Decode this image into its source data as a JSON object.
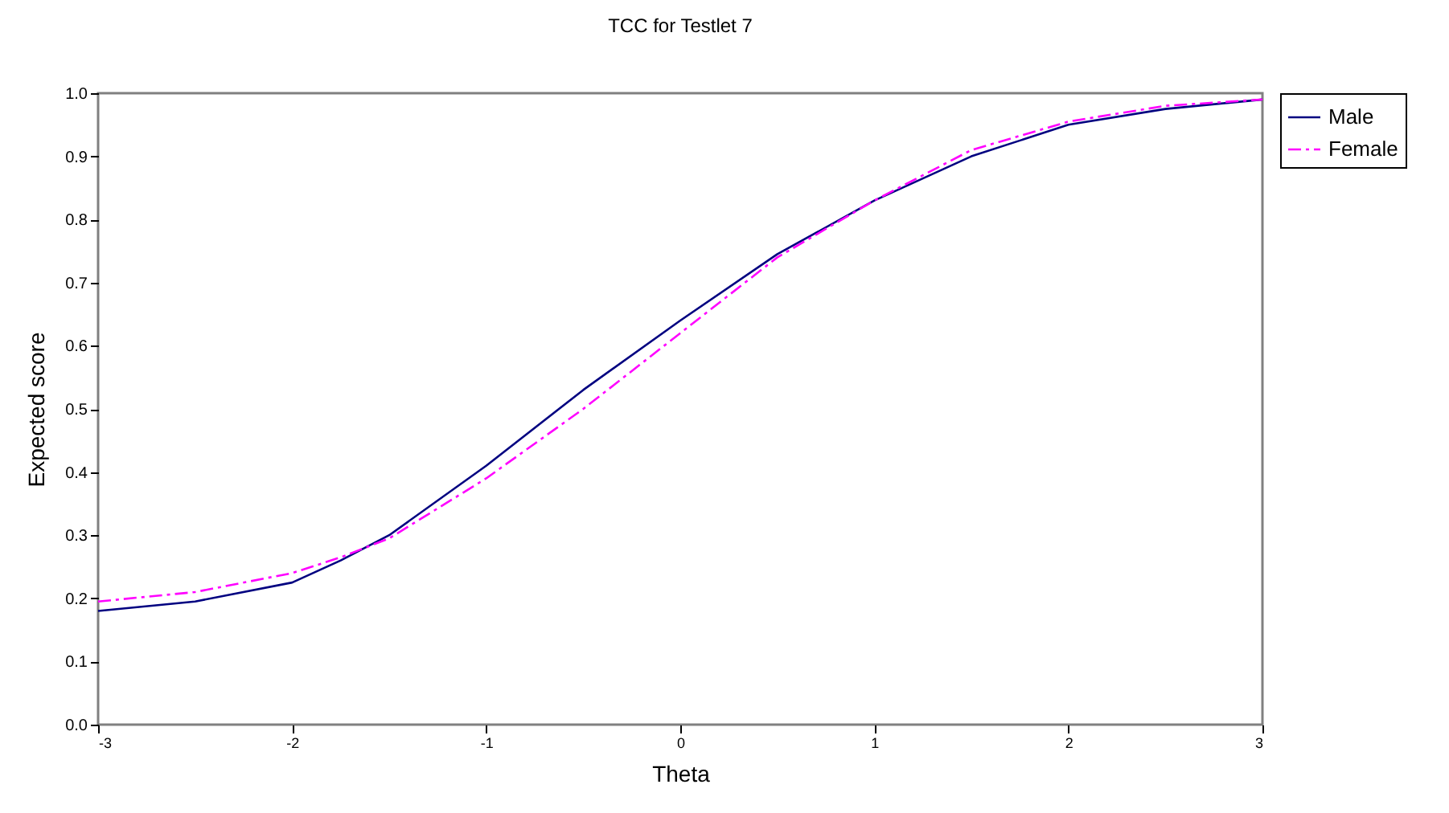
{
  "chart_data": {
    "type": "line",
    "title": "TCC for Testlet 7",
    "xlabel": "Theta",
    "ylabel": "Expected score",
    "x": [
      -3,
      -2.5,
      -2,
      -1.75,
      -1.5,
      -1,
      -0.5,
      0,
      0.5,
      1,
      1.5,
      2,
      2.5,
      3
    ],
    "series": [
      {
        "name": "Male",
        "color": "#000080",
        "line_style": "solid",
        "values": [
          0.18,
          0.195,
          0.225,
          0.26,
          0.3,
          0.41,
          0.53,
          0.64,
          0.745,
          0.83,
          0.9,
          0.95,
          0.975,
          0.99
        ]
      },
      {
        "name": "Female",
        "color": "#ff00ff",
        "line_style": "dashed",
        "values": [
          0.195,
          0.21,
          0.24,
          0.265,
          0.295,
          0.39,
          0.5,
          0.62,
          0.74,
          0.83,
          0.91,
          0.955,
          0.98,
          0.99
        ]
      }
    ],
    "xlim": [
      -3,
      3
    ],
    "xticks": [
      -3,
      -2,
      -1,
      0,
      1,
      2,
      3
    ],
    "ylim": [
      0,
      1
    ],
    "yticks": [
      {
        "value": 0,
        "label": "0.0"
      },
      {
        "value": 0.1,
        "label": "0.1"
      },
      {
        "value": 0.2,
        "label": "0.2"
      },
      {
        "value": 0.3,
        "label": "0.3"
      },
      {
        "value": 0.4,
        "label": "0.4"
      },
      {
        "value": 0.5,
        "label": "0.5"
      },
      {
        "value": 0.6,
        "label": "0.6"
      },
      {
        "value": 0.7,
        "label": "0.7"
      },
      {
        "value": 0.8,
        "label": "0.8"
      },
      {
        "value": 0.9,
        "label": "0.9"
      },
      {
        "value": 1,
        "label": "1.0"
      }
    ],
    "grid": false,
    "legend": "right",
    "marker": "none"
  }
}
